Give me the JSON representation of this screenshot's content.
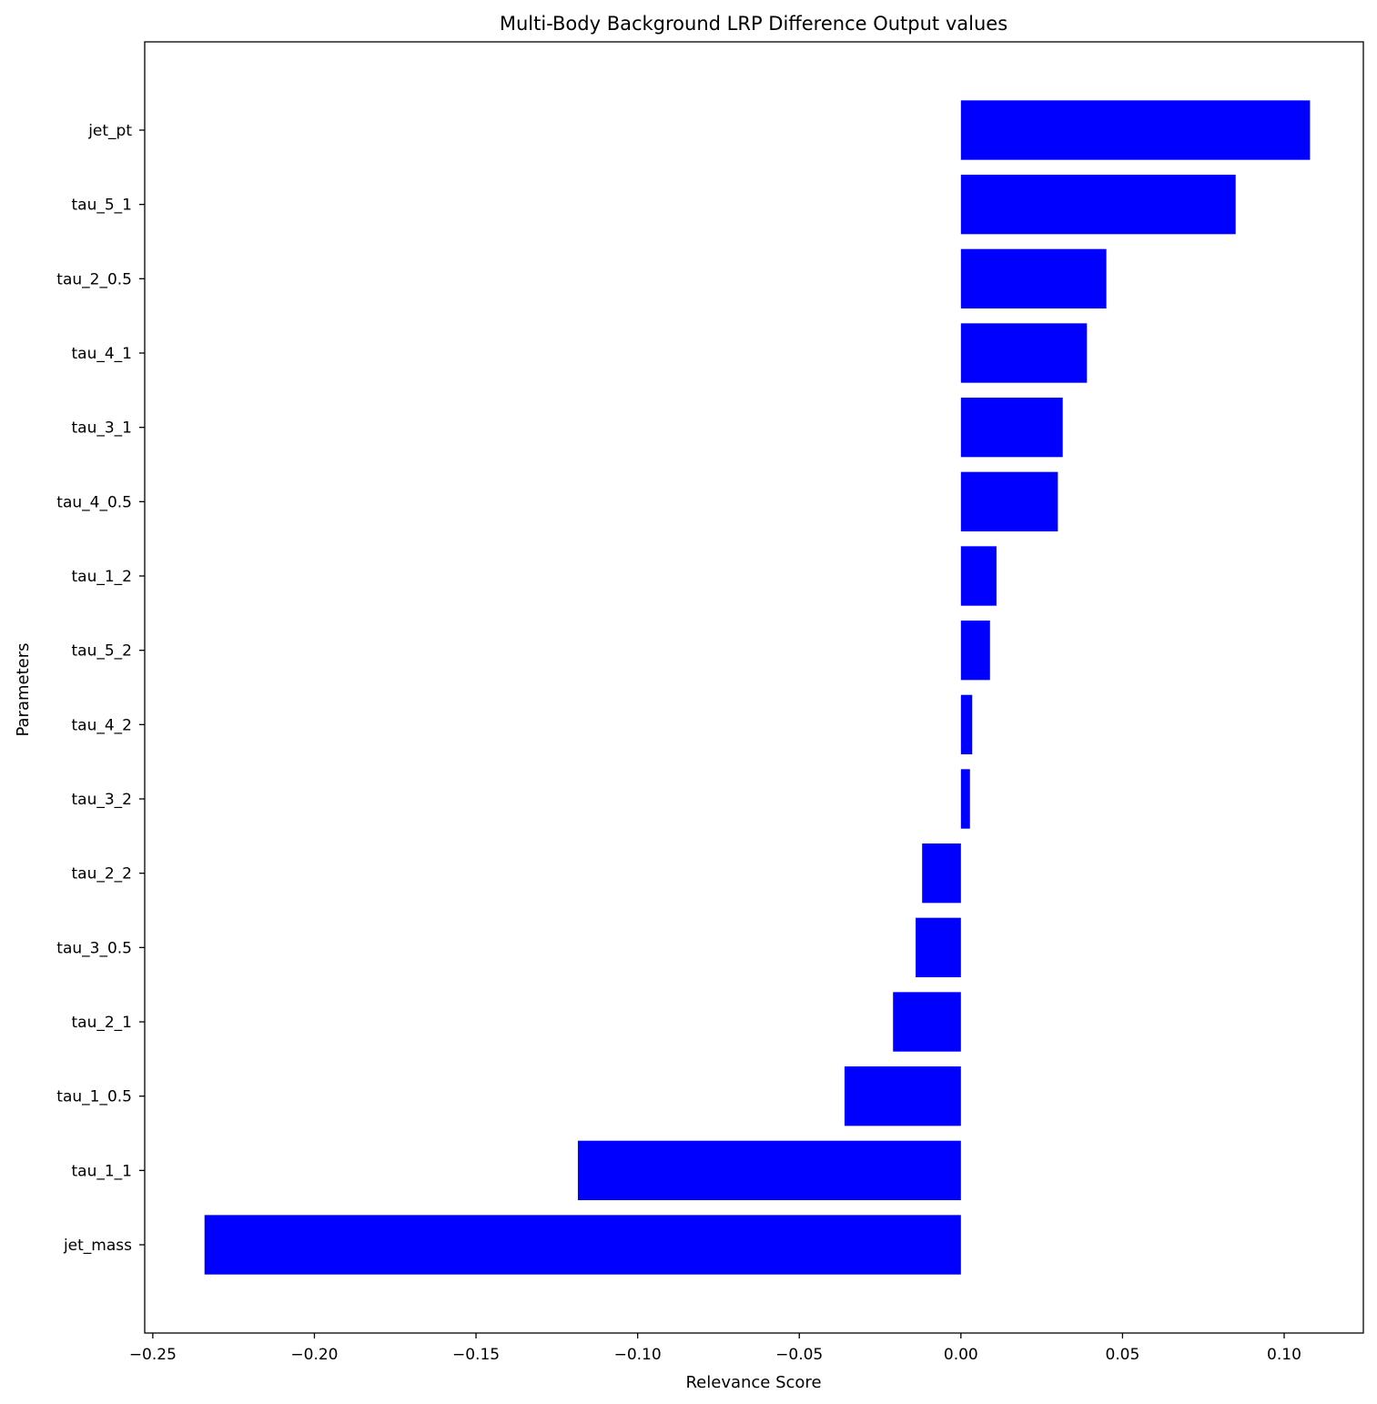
{
  "chart_data": {
    "type": "bar",
    "orientation": "horizontal",
    "title": "Multi-Body Background LRP Difference Output values",
    "xlabel": "Relevance Score",
    "ylabel": "Parameters",
    "xlim": [
      -0.2525,
      0.1245
    ],
    "xticks": [
      -0.25,
      -0.2,
      -0.15,
      -0.1,
      -0.05,
      0.0,
      0.05,
      0.1
    ],
    "xtick_labels": [
      "−0.25",
      "−0.20",
      "−0.15",
      "−0.10",
      "−0.05",
      "0.00",
      "0.05",
      "0.10"
    ],
    "categories": [
      "jet_pt",
      "tau_5_1",
      "tau_2_0.5",
      "tau_4_1",
      "tau_3_1",
      "tau_4_0.5",
      "tau_1_2",
      "tau_5_2",
      "tau_4_2",
      "tau_3_2",
      "tau_2_2",
      "tau_3_0.5",
      "tau_2_1",
      "tau_1_0.5",
      "tau_1_1",
      "jet_mass"
    ],
    "values": [
      0.108,
      0.085,
      0.045,
      0.039,
      0.0315,
      0.03,
      0.011,
      0.009,
      0.0035,
      0.0028,
      -0.012,
      -0.014,
      -0.021,
      -0.036,
      -0.1185,
      -0.234
    ],
    "bar_color": "#0000ff",
    "grid": false,
    "legend": "none"
  }
}
